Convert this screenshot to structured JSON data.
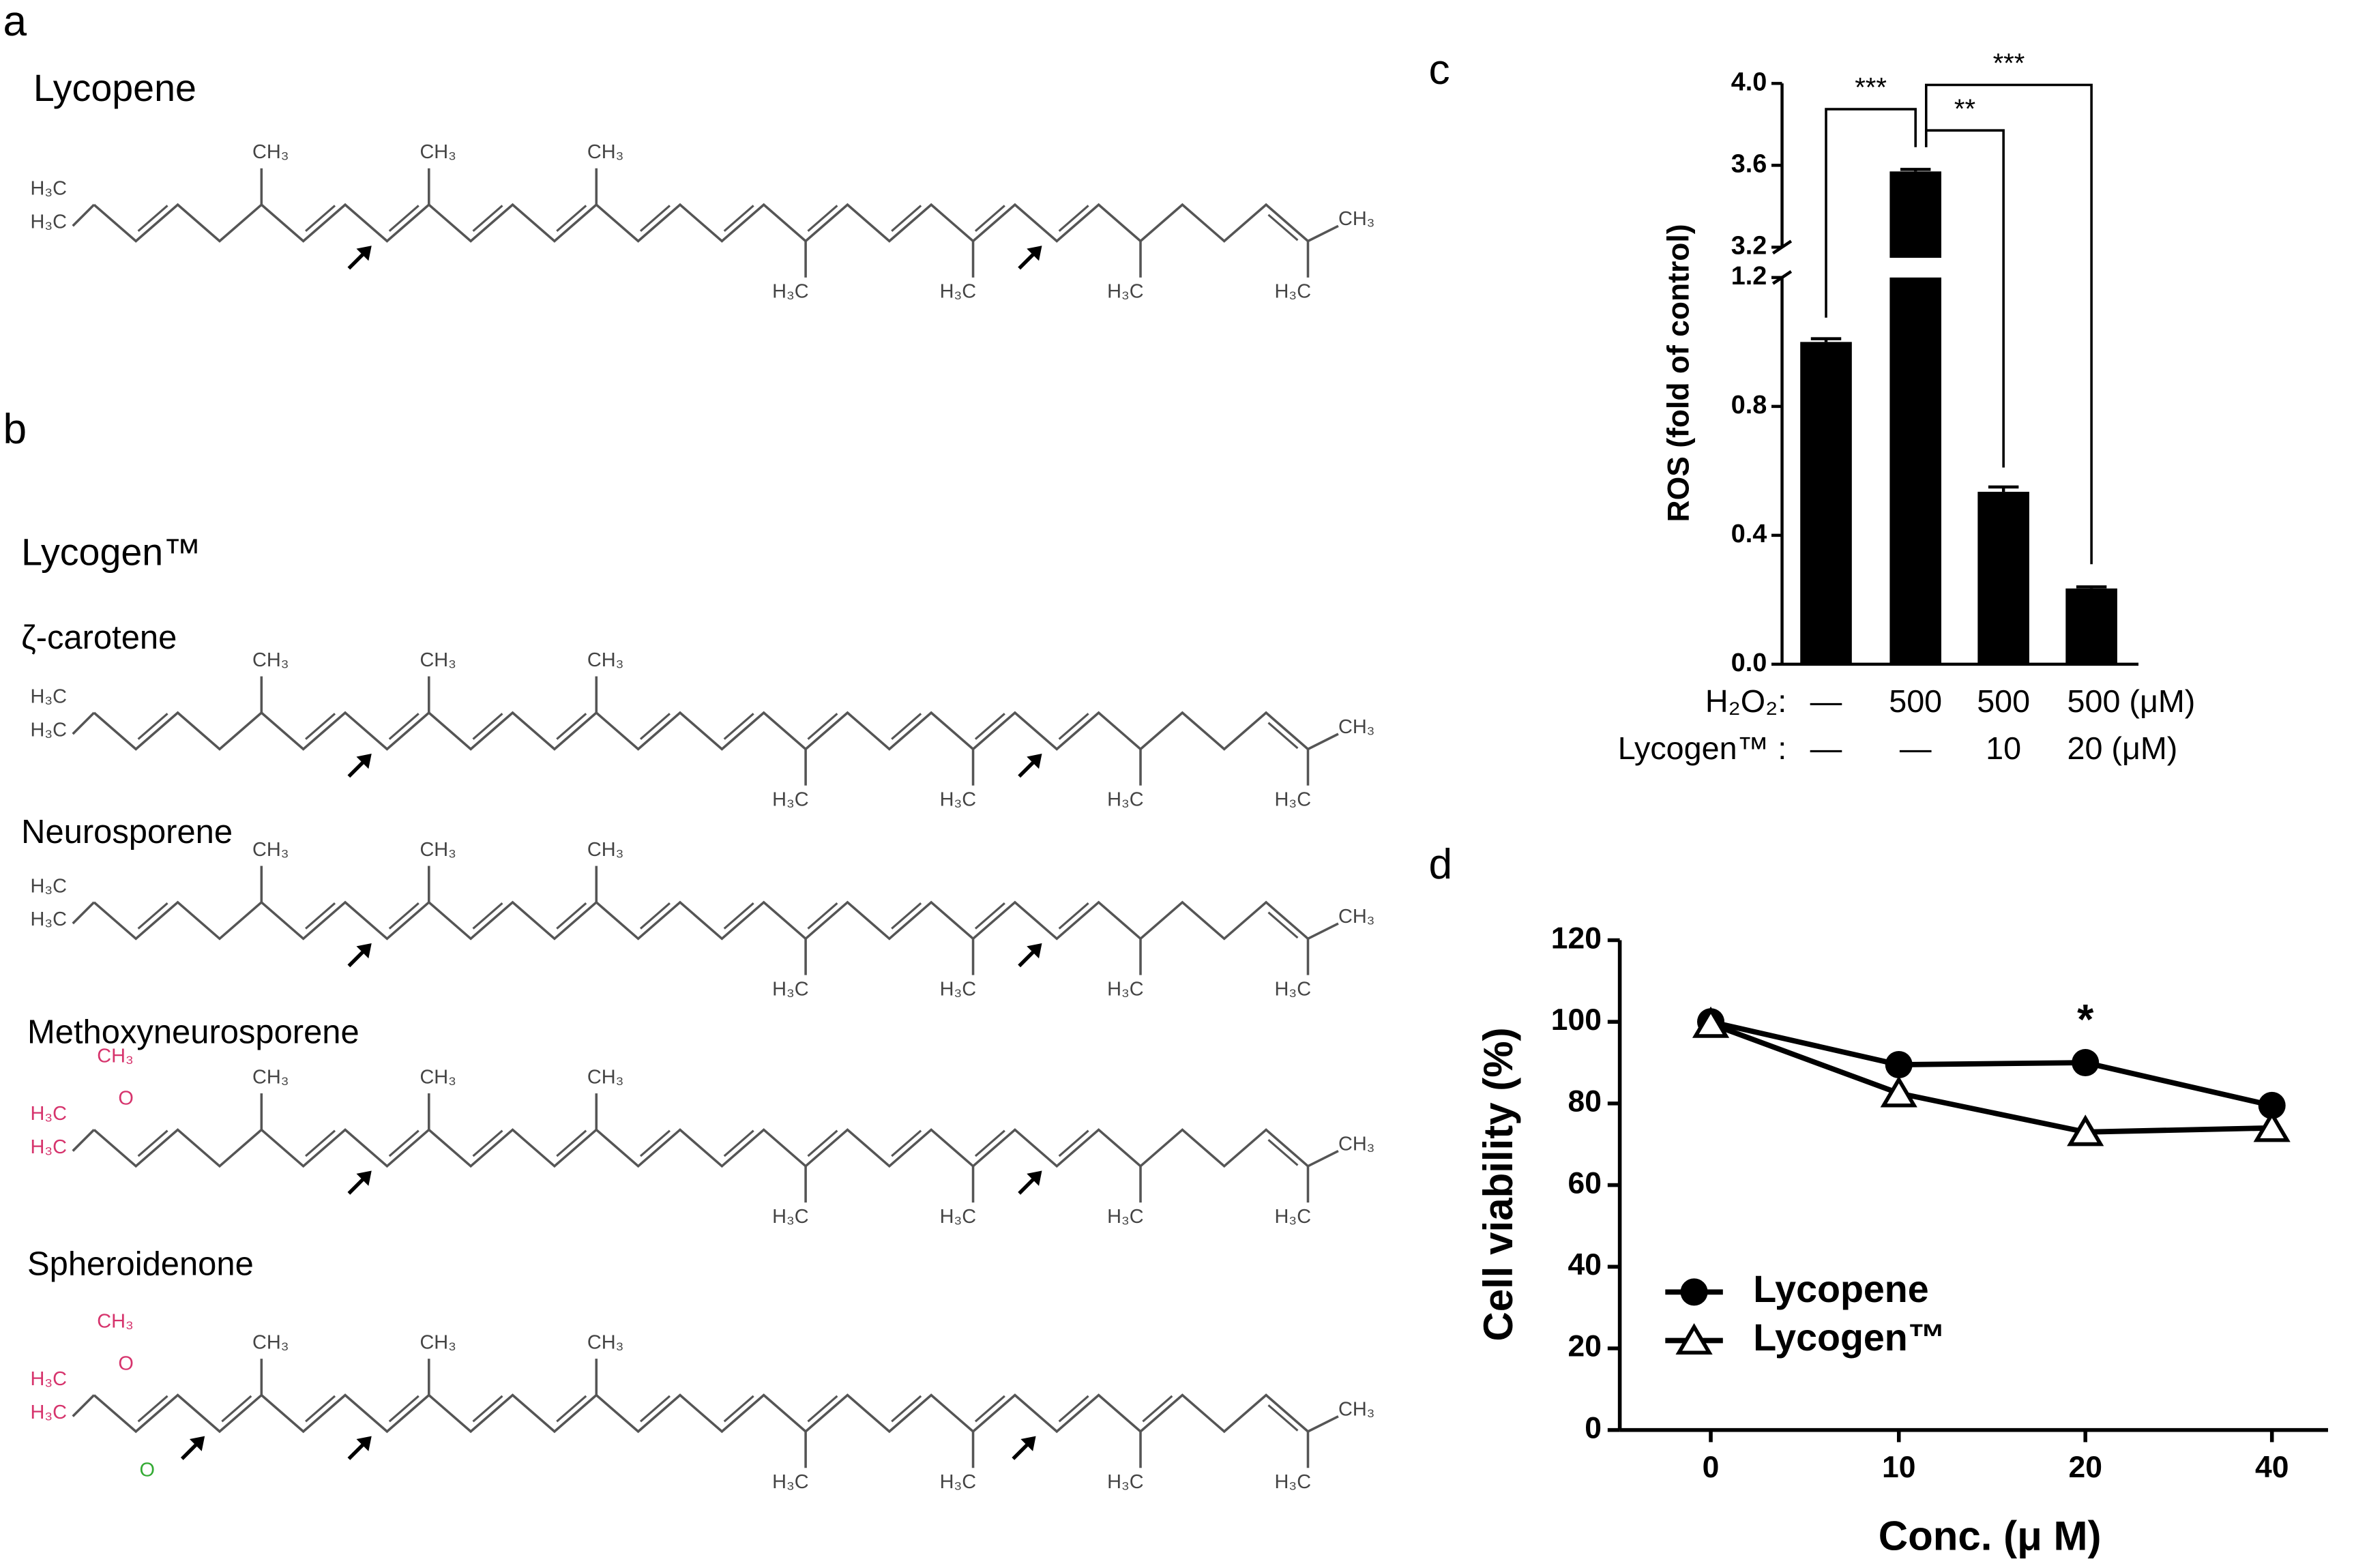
{
  "panel_labels": [
    "a",
    "b",
    "c",
    "d"
  ],
  "structures_header": "Lycogen™",
  "structures": [
    {
      "name": "Lycopene"
    },
    {
      "name": "ζ-carotene"
    },
    {
      "name": "Neurosporene"
    },
    {
      "name": "Methoxyneurosporene"
    },
    {
      "name": "Spheroidenone"
    }
  ],
  "atom_labels": {
    "methyl": "CH₃",
    "methyl_left": "H₃C",
    "oxygen": "O"
  },
  "chart_data": [
    {
      "type": "bar",
      "categories": [
        null,
        null,
        null,
        null
      ],
      "values": [
        1.0,
        3.57,
        0.535,
        0.235
      ],
      "errors": [
        0.01,
        0.01,
        0.015,
        0.005
      ],
      "color": "#000000",
      "y_label": "ROS (fold of control)",
      "ylim": [
        0,
        4.0
      ],
      "axis_break": [
        1.2,
        3.2
      ],
      "yticks": [
        {
          "value": 0,
          "label": "0.0"
        },
        {
          "value": 0.4,
          "label": "0.4"
        },
        {
          "value": 0.8,
          "label": "0.8"
        },
        {
          "value": 1.2,
          "label": "1.2"
        },
        {
          "value": 3.2,
          "label": "3.2"
        },
        {
          "value": 3.6,
          "label": "3.6"
        },
        {
          "value": 4.0,
          "label": "4.0"
        }
      ],
      "x_table": [
        {
          "label": "H₂O₂:",
          "cells": [
            "—",
            "500",
            "500",
            "500 (μM)"
          ]
        },
        {
          "label": "Lycogen™ :",
          "cells": [
            "—",
            "—",
            "10",
            "20 (μM)"
          ]
        }
      ],
      "annotations": [
        {
          "text": "***",
          "from": 0,
          "to": 1
        },
        {
          "text": "**",
          "from": 1,
          "to": 2
        },
        {
          "text": "***",
          "from": 1,
          "to": 3
        }
      ]
    },
    {
      "type": "line",
      "categories": [
        "0",
        "10",
        "20",
        "40"
      ],
      "series": [
        {
          "name": "Lycopene",
          "color": "#000000",
          "marker": "circle",
          "values": [
            100,
            89.5,
            90,
            79.5
          ]
        },
        {
          "name": "Lycogen™",
          "color": "#000000",
          "marker": "triangle",
          "values": [
            99.5,
            82.5,
            73,
            74
          ]
        }
      ],
      "x_label": "Conc. (μ M)",
      "y_label": "Cell viability (%)",
      "ylim": [
        0,
        120
      ],
      "yticks": [
        0,
        20,
        40,
        60,
        80,
        100,
        120
      ],
      "annotations": [
        {
          "text": "*",
          "category": 2,
          "value": 102
        }
      ],
      "legend": "lower-left"
    }
  ]
}
